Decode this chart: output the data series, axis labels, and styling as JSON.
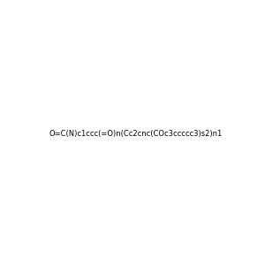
{
  "smiles": "O=C(N)c1ccc(=O)n(Cc2cnc(COc3ccccc3)s2)n1",
  "image_size": 300,
  "background_color": "#f0f0f0",
  "title": "",
  "atom_colors": {
    "N": "#008080",
    "O": "#ff0000",
    "S": "#cccc00",
    "default": "#000000"
  }
}
